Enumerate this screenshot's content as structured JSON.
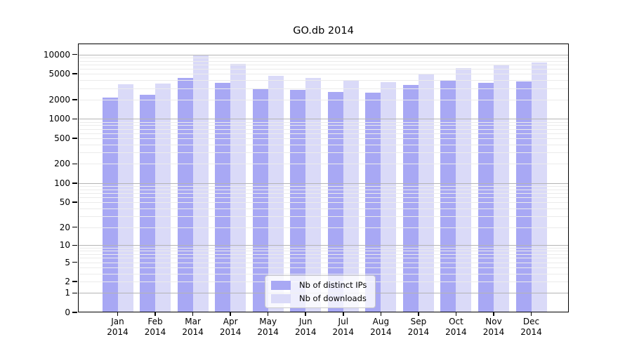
{
  "title": "GO.db 2014",
  "chart_data": {
    "type": "bar",
    "title": "GO.db 2014",
    "categories": [
      "Jan",
      "Feb",
      "Mar",
      "Apr",
      "May",
      "Jun",
      "Jul",
      "Aug",
      "Sep",
      "Oct",
      "Nov",
      "Dec"
    ],
    "category_year": "2014",
    "series": [
      {
        "name": "Nb of distinct IPs",
        "color": "#a8a8f4",
        "values": [
          2150,
          2400,
          4350,
          3600,
          3000,
          2800,
          2600,
          2550,
          3350,
          4000,
          3650,
          3800
        ]
      },
      {
        "name": "Nb of downloads",
        "color": "#dadaf8",
        "values": [
          3450,
          3550,
          10000,
          7100,
          4700,
          4350,
          3900,
          3700,
          4900,
          6200,
          6900,
          7600
        ]
      }
    ],
    "y_axis": {
      "scale": "log1p",
      "ticks": [
        0,
        1,
        2,
        5,
        10,
        20,
        50,
        100,
        200,
        500,
        1000,
        2000,
        5000,
        10000
      ],
      "top_value": 14800
    },
    "xlabel": "",
    "ylabel": "",
    "grid": true,
    "legend_position": "inside-bottom-center"
  },
  "colors": {
    "bar_ips": "#a8a8f4",
    "bar_downloads": "#dadaf8",
    "major_grid": "#b4b4b4",
    "minor_grid": "#ebebeb",
    "axis": "#000000",
    "legend_border": "#c9c9c9"
  }
}
